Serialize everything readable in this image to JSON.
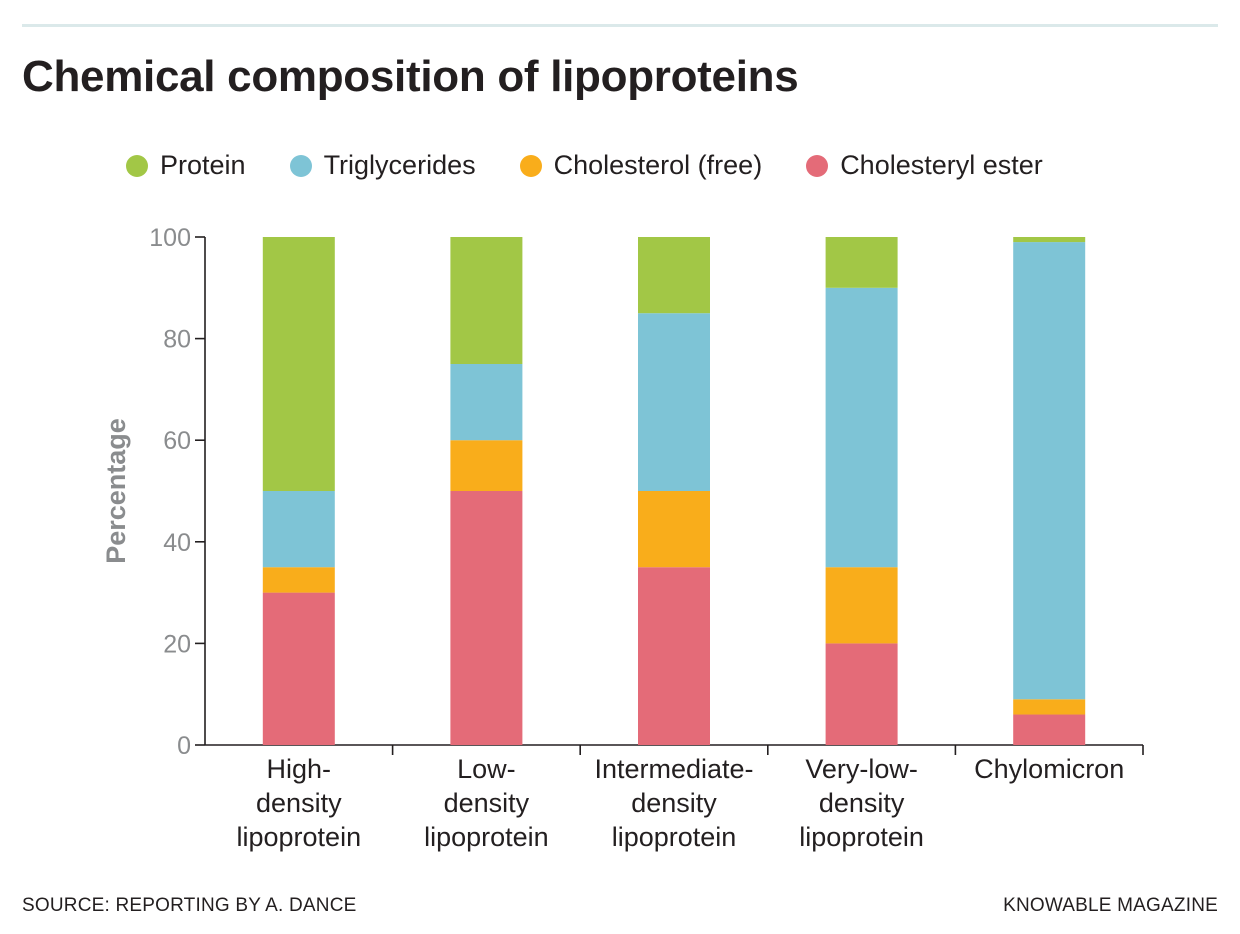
{
  "header": {
    "title": "Chemical composition of lipoproteins"
  },
  "footer": {
    "source": "SOURCE: REPORTING BY A. DANCE",
    "publisher": "KNOWABLE MAGAZINE"
  },
  "chart_data": {
    "type": "bar",
    "stacked": true,
    "title": "Chemical composition of lipoproteins",
    "ylabel": "Percentage",
    "xlabel": "",
    "ylim": [
      0,
      100
    ],
    "yticks": [
      0,
      20,
      40,
      60,
      80,
      100
    ],
    "grid": false,
    "legend_position": "top",
    "categories": [
      [
        "High-",
        "density",
        "lipoprotein"
      ],
      [
        "Low-",
        "density",
        "lipoprotein"
      ],
      [
        "Intermediate-",
        "density",
        "lipoprotein"
      ],
      [
        "Very-low-",
        "density",
        "lipoprotein"
      ],
      [
        "Chylomicron"
      ]
    ],
    "series": [
      {
        "name": "Cholesteryl ester",
        "color": "#e46b78",
        "values": [
          30,
          50,
          35,
          20,
          6
        ]
      },
      {
        "name": "Cholesterol (free)",
        "color": "#f9ad1b",
        "values": [
          5,
          10,
          15,
          15,
          3
        ]
      },
      {
        "name": "Triglycerides",
        "color": "#7ec4d6",
        "values": [
          15,
          15,
          35,
          55,
          90
        ]
      },
      {
        "name": "Protein",
        "color": "#a2c746",
        "values": [
          50,
          25,
          15,
          10,
          1
        ]
      }
    ],
    "legend_order": [
      "Protein",
      "Triglycerides",
      "Cholesterol (free)",
      "Cholesteryl ester"
    ]
  }
}
